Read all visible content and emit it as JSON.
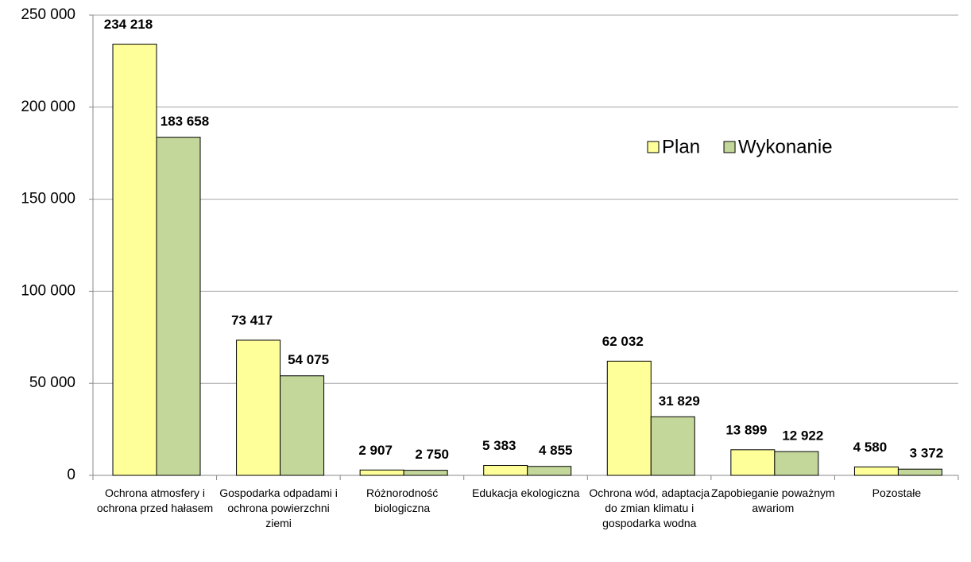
{
  "chart_data": {
    "type": "bar",
    "categories": [
      "Ochrona atmosfery i ochrona przed hałasem",
      "Gospodarka odpadami i ochrona powierzchni ziemi",
      "Różnorodność biologiczna",
      "Edukacja ekologiczna",
      "Ochrona wód, adaptacja do zmian klimatu i gospodarka wodna",
      "Zapobieganie poważnym awariom",
      "Pozostałe"
    ],
    "series": [
      {
        "name": "Plan",
        "color": "#ffff99",
        "values": [
          234218,
          73417,
          2907,
          5383,
          62032,
          13899,
          4580
        ],
        "value_labels": [
          "234 218",
          "73 417",
          "2 907",
          "5 383",
          "62 032",
          "13 899",
          "4 580"
        ]
      },
      {
        "name": "Wykonanie",
        "color": "#c4d79b",
        "values": [
          183658,
          54075,
          2750,
          4855,
          31829,
          12922,
          3372
        ],
        "value_labels": [
          "183 658",
          "54 075",
          "2 750",
          "4 855",
          "31 829",
          "12 922",
          "3 372"
        ]
      }
    ],
    "ylim": [
      0,
      250000
    ],
    "yticks": [
      0,
      {
        "value": 50000,
        "label": "50 000"
      },
      {
        "value": 100000,
        "label": "100 000"
      },
      {
        "value": 150000,
        "label": "150 000"
      },
      {
        "value": 200000,
        "label": "200 000"
      },
      {
        "value": 250000,
        "label": "250 000"
      }
    ],
    "grid": true
  }
}
